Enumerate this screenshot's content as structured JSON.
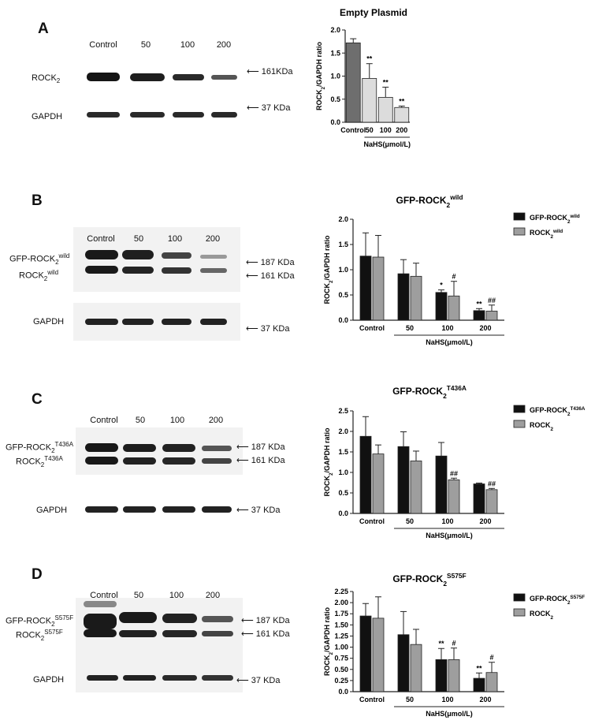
{
  "panels": [
    {
      "letter": "A",
      "lanes": [
        "Control",
        "50",
        "100",
        "200"
      ],
      "bands": [
        {
          "label": "ROCK",
          "sub": "2",
          "sup": "",
          "kda": "161KDa"
        },
        {
          "label": "GAPDH",
          "sub": "",
          "sup": "",
          "kda": "37 KDa"
        }
      ]
    },
    {
      "letter": "B",
      "lanes": [
        "Control",
        "50",
        "100",
        "200"
      ],
      "bands": [
        {
          "label": "GFP-ROCK",
          "sub": "2",
          "sup": "wild",
          "kda": "187 KDa"
        },
        {
          "label": "ROCK",
          "sub": "2",
          "sup": "wild",
          "kda": "161 KDa"
        },
        {
          "label": "GAPDH",
          "sub": "",
          "sup": "",
          "kda": "37 KDa"
        }
      ]
    },
    {
      "letter": "C",
      "lanes": [
        "Control",
        "50",
        "100",
        "200"
      ],
      "bands": [
        {
          "label": "GFP-ROCK",
          "sub": "2",
          "sup": "T436A",
          "kda": "187 KDa"
        },
        {
          "label": "ROCK",
          "sub": "2",
          "sup": "T436A",
          "kda": "161 KDa"
        },
        {
          "label": "GAPDH",
          "sub": "",
          "sup": "",
          "kda": "37 KDa"
        }
      ]
    },
    {
      "letter": "D",
      "lanes": [
        "Control",
        "50",
        "100",
        "200"
      ],
      "bands": [
        {
          "label": "GFP-ROCK",
          "sub": "2",
          "sup": "S575F",
          "kda": "187 KDa"
        },
        {
          "label": "ROCK",
          "sub": "2",
          "sup": "S575F",
          "kda": "161 KDa"
        },
        {
          "label": "GAPDH",
          "sub": "",
          "sup": "",
          "kda": "37 KDa"
        }
      ]
    }
  ],
  "chart_data": [
    {
      "type": "bar",
      "title": "Empty Plasmid",
      "title_sup": "",
      "ylabel_main": "ROCK",
      "ylabel_sub": "2",
      "ylabel_rest": "/GAPDH ratio",
      "xlabel": "NaHS(μmol/L)",
      "categories": [
        "Control",
        "50",
        "100",
        "200"
      ],
      "ylim": [
        0,
        2.0
      ],
      "yticks": [
        "0.0",
        "0.5",
        "1.0",
        "1.5",
        "2.0"
      ],
      "ytick_values": [
        0,
        0.5,
        1.0,
        1.5,
        2.0
      ],
      "series": [
        {
          "values": [
            1.72,
            0.95,
            0.54,
            0.32
          ],
          "errors": [
            0.09,
            0.32,
            0.22,
            0.03
          ],
          "color": "#6e6e6e",
          "control_only_color": true,
          "rest_color": "#dcdcdc",
          "marks": [
            "",
            "**",
            "**",
            "**"
          ]
        }
      ],
      "legend": []
    },
    {
      "type": "bar",
      "title": "GFP-ROCK",
      "title_sub": "2",
      "title_sup": "wild",
      "ylabel_main": "ROCK",
      "ylabel_sub": "2",
      "ylabel_rest": "/GAPDH ratio",
      "xlabel": "NaHS(μmol/L)",
      "categories": [
        "Control",
        "50",
        "100",
        "200"
      ],
      "ylim": [
        0,
        2.0
      ],
      "yticks": [
        "0.0",
        "0.5",
        "1.0",
        "1.5",
        "2.0"
      ],
      "ytick_values": [
        0,
        0.5,
        1.0,
        1.5,
        2.0
      ],
      "series": [
        {
          "name": "GFP-ROCK",
          "name_sub": "2",
          "name_sup": "wild",
          "values": [
            1.27,
            0.92,
            0.55,
            0.19
          ],
          "errors": [
            0.46,
            0.28,
            0.05,
            0.04
          ],
          "color": "#111111",
          "marks": [
            "",
            "",
            "*",
            "**"
          ]
        },
        {
          "name": "ROCK",
          "name_sub": "2",
          "name_sup": "wild",
          "values": [
            1.25,
            0.87,
            0.48,
            0.18
          ],
          "errors": [
            0.43,
            0.26,
            0.29,
            0.12
          ],
          "color": "#9e9e9e",
          "marks": [
            "",
            "",
            "#",
            "##"
          ]
        }
      ]
    },
    {
      "type": "bar",
      "title": "GFP-ROCK",
      "title_sub": "2",
      "title_sup": "T436A",
      "ylabel_main": "ROCK",
      "ylabel_sub": "2",
      "ylabel_rest": "/GAPDH ratio",
      "xlabel": "NaHS(μmol/L)",
      "categories": [
        "Control",
        "50",
        "100",
        "200"
      ],
      "ylim": [
        0,
        2.5
      ],
      "yticks": [
        "0.0",
        "0.5",
        "1.0",
        "1.5",
        "2.0",
        "2.5"
      ],
      "ytick_values": [
        0,
        0.5,
        1.0,
        1.5,
        2.0,
        2.5
      ],
      "series": [
        {
          "name": "GFP-ROCK",
          "name_sub": "2",
          "name_sup": "T436A",
          "values": [
            1.88,
            1.63,
            1.4,
            0.72
          ],
          "errors": [
            0.48,
            0.36,
            0.33,
            0.02
          ],
          "color": "#111111",
          "marks": [
            "",
            "",
            "",
            ""
          ]
        },
        {
          "name": "ROCK",
          "name_sub": "2",
          "name_sup": "",
          "values": [
            1.45,
            1.28,
            0.82,
            0.58
          ],
          "errors": [
            0.22,
            0.24,
            0.04,
            0.03
          ],
          "color": "#9e9e9e",
          "marks": [
            "",
            "",
            "##",
            "##"
          ]
        }
      ]
    },
    {
      "type": "bar",
      "title": "GFP-ROCK",
      "title_sub": "2",
      "title_sup": "S575F",
      "ylabel_main": "ROCK",
      "ylabel_sub": "2",
      "ylabel_rest": "/GAPDH ratio",
      "xlabel": "NaHS(μmol/L)",
      "categories": [
        "Control",
        "50",
        "100",
        "200"
      ],
      "ylim": [
        0,
        2.25
      ],
      "yticks": [
        "0.0",
        "0.25",
        "0.50",
        "0.75",
        "1.00",
        "1.25",
        "1.50",
        "1.75",
        "2.00",
        "2.25"
      ],
      "ytick_values": [
        0,
        0.25,
        0.5,
        0.75,
        1.0,
        1.25,
        1.5,
        1.75,
        2.0,
        2.25
      ],
      "series": [
        {
          "name": "GFP-ROCK",
          "name_sub": "2",
          "name_sup": "S575F",
          "values": [
            1.7,
            1.28,
            0.72,
            0.3
          ],
          "errors": [
            0.28,
            0.52,
            0.25,
            0.12
          ],
          "color": "#111111",
          "marks": [
            "",
            "",
            "**",
            "**"
          ]
        },
        {
          "name": "ROCK",
          "name_sub": "2",
          "name_sup": "",
          "values": [
            1.65,
            1.06,
            0.72,
            0.43
          ],
          "errors": [
            0.48,
            0.34,
            0.26,
            0.23
          ],
          "color": "#9e9e9e",
          "marks": [
            "",
            "",
            "#",
            "#"
          ]
        }
      ]
    }
  ]
}
